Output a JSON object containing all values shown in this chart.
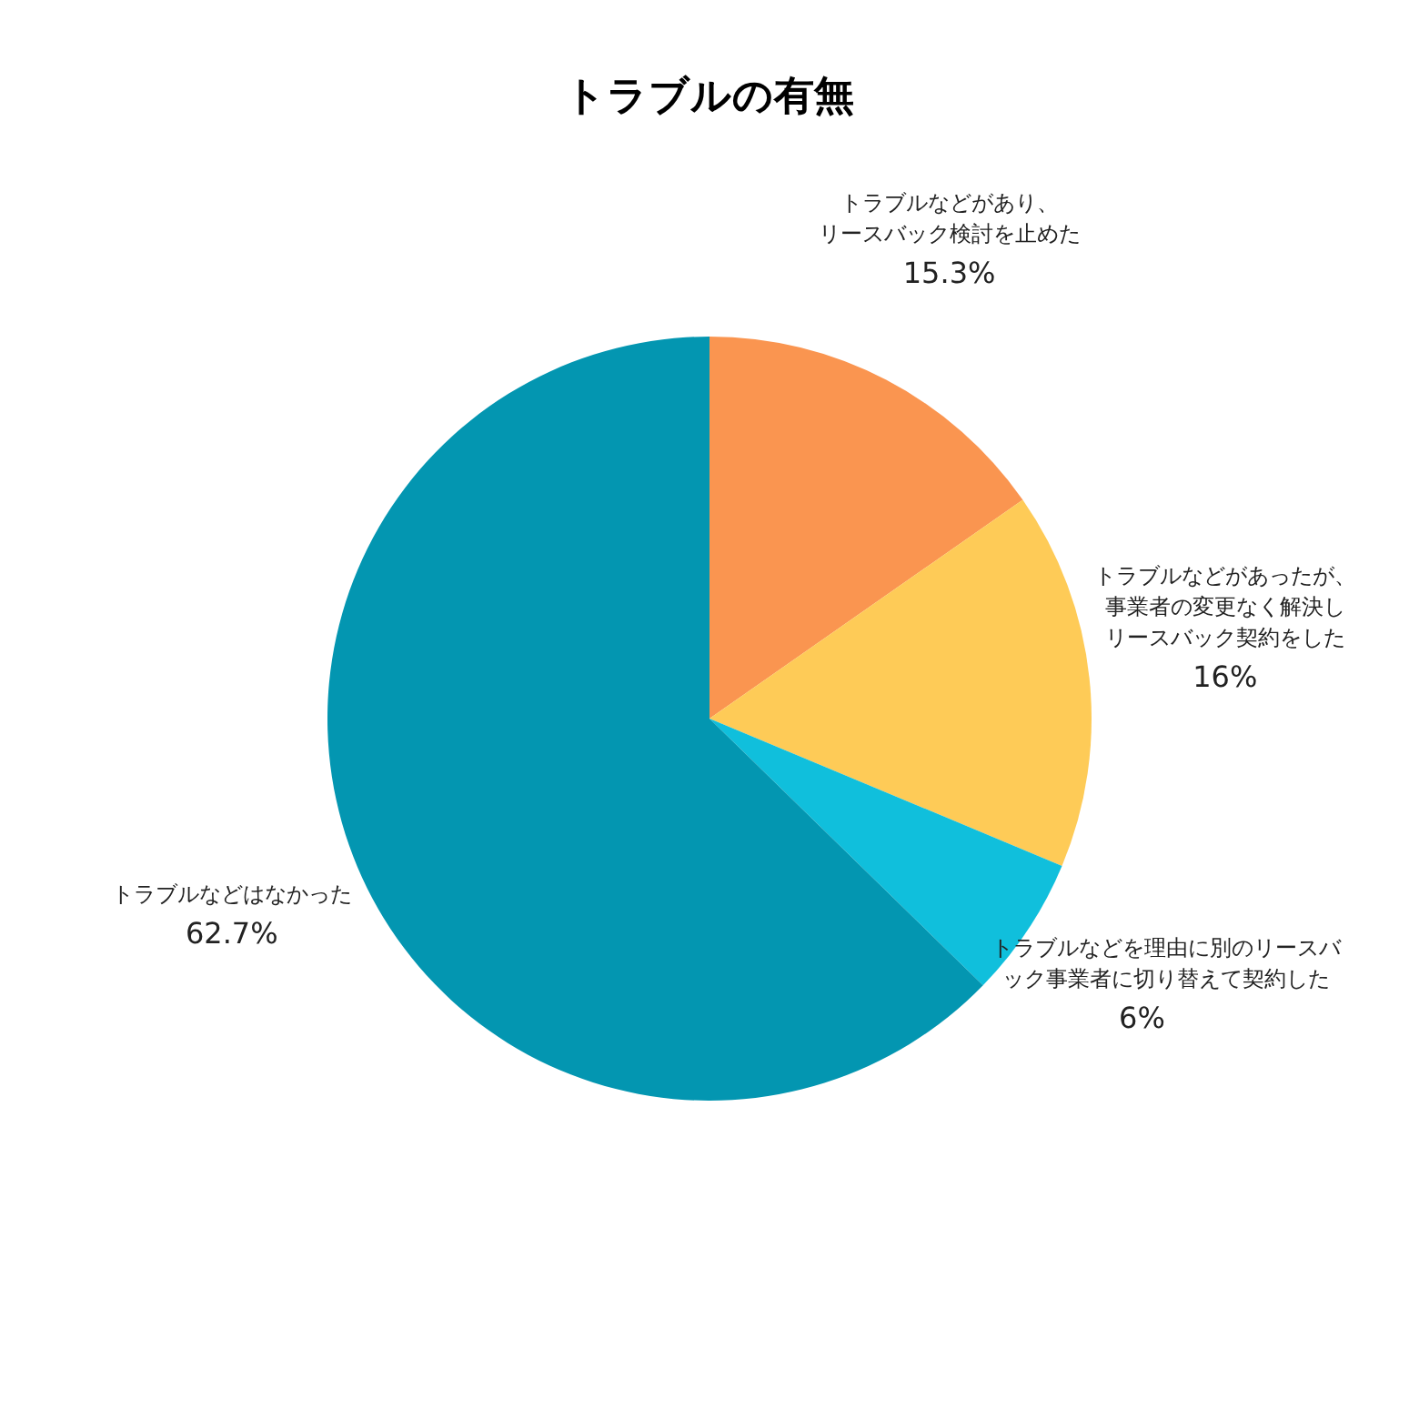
{
  "chart_data": {
    "type": "pie",
    "title": "トラブルの有無",
    "categories": [
      "トラブルなどがあり、リースバック検討を止めた",
      "トラブルなどがあったが、事業者の変更なく解決しリースバック契約をした",
      "トラブルなどを理由に別のリースバック事業者に切り替えて契約した",
      "トラブルなどはなかった"
    ],
    "values": [
      15.3,
      16,
      6,
      62.7
    ],
    "value_labels": [
      "15.3%",
      "16%",
      "6%",
      "62.7%"
    ],
    "colors": [
      "#fa9550",
      "#fecb57",
      "#10bfdc",
      "#0396b1"
    ]
  }
}
